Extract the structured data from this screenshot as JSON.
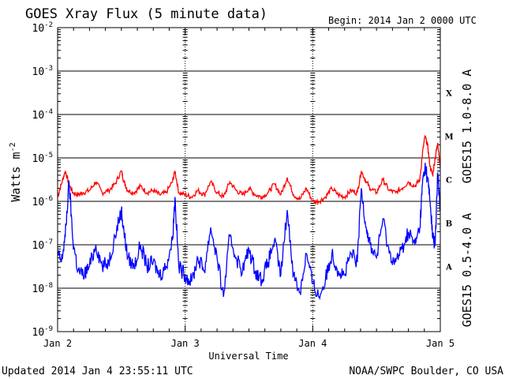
{
  "chart_data": {
    "type": "line",
    "title": "GOES Xray Flux (5 minute data)",
    "begin_label": "Begin:  2014 Jan 2 0000 UTC",
    "xlabel": "Universal Time",
    "ylabel_base": "Watts m",
    "ylabel_exp": "-2",
    "x_ticks": [
      "Jan 2",
      "Jan 3",
      "Jan 4",
      "Jan 5"
    ],
    "x_range_days": [
      0,
      3
    ],
    "y_scale": "log",
    "y_range_exp": [
      -9,
      -2
    ],
    "y_ticks": [
      {
        "base": "10",
        "exp": "-2"
      },
      {
        "base": "10",
        "exp": "-3"
      },
      {
        "base": "10",
        "exp": "-4"
      },
      {
        "base": "10",
        "exp": "-5"
      },
      {
        "base": "10",
        "exp": "-6"
      },
      {
        "base": "10",
        "exp": "-7"
      },
      {
        "base": "10",
        "exp": "-8"
      },
      {
        "base": "10",
        "exp": "-9"
      }
    ],
    "flare_classes": [
      {
        "label": "X",
        "exp": -3.5
      },
      {
        "label": "M",
        "exp": -4.5
      },
      {
        "label": "C",
        "exp": -5.5
      },
      {
        "label": "B",
        "exp": -6.5
      },
      {
        "label": "A",
        "exp": -7.5
      }
    ],
    "series": [
      {
        "name": "GOES15 1.0-8.0 A",
        "color": "#ff0000",
        "x_days": [
          0.0,
          0.03,
          0.06,
          0.09,
          0.12,
          0.16,
          0.2,
          0.25,
          0.3,
          0.35,
          0.4,
          0.45,
          0.5,
          0.52,
          0.55,
          0.6,
          0.65,
          0.7,
          0.75,
          0.8,
          0.85,
          0.9,
          0.92,
          0.95,
          1.0,
          1.05,
          1.1,
          1.15,
          1.2,
          1.25,
          1.3,
          1.35,
          1.4,
          1.45,
          1.5,
          1.55,
          1.6,
          1.65,
          1.7,
          1.75,
          1.8,
          1.85,
          1.9,
          1.95,
          2.0,
          2.05,
          2.1,
          2.15,
          2.2,
          2.25,
          2.3,
          2.35,
          2.38,
          2.42,
          2.45,
          2.5,
          2.55,
          2.6,
          2.65,
          2.7,
          2.75,
          2.8,
          2.84,
          2.86,
          2.88,
          2.9,
          2.92,
          2.94,
          2.96,
          2.98,
          3.0
        ],
        "y_exp": [
          -5.9,
          -5.6,
          -5.3,
          -5.6,
          -5.8,
          -5.85,
          -5.8,
          -5.75,
          -5.55,
          -5.8,
          -5.75,
          -5.6,
          -5.3,
          -5.55,
          -5.75,
          -5.8,
          -5.65,
          -5.8,
          -5.75,
          -5.85,
          -5.8,
          -5.55,
          -5.3,
          -5.8,
          -5.85,
          -5.9,
          -5.75,
          -5.85,
          -5.55,
          -5.8,
          -5.9,
          -5.55,
          -5.75,
          -5.85,
          -5.7,
          -5.85,
          -5.9,
          -5.8,
          -5.6,
          -5.85,
          -5.45,
          -5.85,
          -5.95,
          -5.7,
          -6.0,
          -6.0,
          -5.9,
          -5.7,
          -5.85,
          -5.9,
          -5.75,
          -5.8,
          -5.3,
          -5.55,
          -5.7,
          -5.8,
          -5.5,
          -5.75,
          -5.8,
          -5.7,
          -5.55,
          -5.65,
          -5.5,
          -4.9,
          -4.5,
          -4.7,
          -5.2,
          -5.4,
          -5.0,
          -4.65,
          -5.2
        ]
      },
      {
        "name": "GOES15 0.5-4.0 A",
        "color": "#0000ff",
        "x_days": [
          0.0,
          0.03,
          0.06,
          0.09,
          0.12,
          0.16,
          0.2,
          0.25,
          0.3,
          0.35,
          0.4,
          0.45,
          0.5,
          0.52,
          0.55,
          0.6,
          0.65,
          0.7,
          0.75,
          0.8,
          0.85,
          0.9,
          0.92,
          0.95,
          1.0,
          1.05,
          1.1,
          1.15,
          1.2,
          1.25,
          1.3,
          1.35,
          1.4,
          1.45,
          1.5,
          1.55,
          1.6,
          1.65,
          1.7,
          1.75,
          1.8,
          1.85,
          1.9,
          1.95,
          2.0,
          2.05,
          2.1,
          2.15,
          2.2,
          2.25,
          2.3,
          2.35,
          2.38,
          2.42,
          2.45,
          2.5,
          2.55,
          2.6,
          2.65,
          2.7,
          2.75,
          2.8,
          2.84,
          2.86,
          2.88,
          2.9,
          2.92,
          2.94,
          2.96,
          2.98,
          3.0
        ],
        "y_exp": [
          -7.2,
          -7.4,
          -6.8,
          -5.55,
          -6.9,
          -7.6,
          -7.7,
          -7.5,
          -7.0,
          -7.5,
          -7.4,
          -6.8,
          -6.2,
          -6.7,
          -7.3,
          -7.5,
          -7.0,
          -7.5,
          -7.4,
          -7.7,
          -7.5,
          -6.9,
          -5.9,
          -7.5,
          -7.7,
          -7.85,
          -7.3,
          -7.6,
          -6.6,
          -7.3,
          -8.2,
          -6.8,
          -7.3,
          -7.6,
          -7.1,
          -7.6,
          -7.8,
          -7.4,
          -6.9,
          -7.7,
          -6.2,
          -7.7,
          -8.1,
          -7.2,
          -7.9,
          -8.2,
          -7.8,
          -7.2,
          -7.6,
          -7.7,
          -7.2,
          -7.4,
          -5.7,
          -6.6,
          -7.0,
          -7.3,
          -6.4,
          -7.2,
          -7.4,
          -7.1,
          -6.7,
          -7.0,
          -6.6,
          -5.6,
          -5.2,
          -5.45,
          -6.0,
          -6.8,
          -7.0,
          -5.35,
          -6.2
        ]
      }
    ]
  },
  "footer": {
    "updated": "Updated 2014 Jan  4 23:55:11 UTC",
    "credit": "NOAA/SWPC Boulder, CO USA"
  }
}
